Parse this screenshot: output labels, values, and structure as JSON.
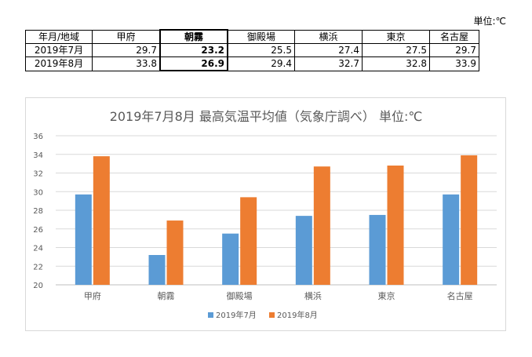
{
  "unit_label": "単位:℃",
  "table": {
    "header": [
      "年月/地域",
      "甲府",
      "朝霧",
      "御殿場",
      "横浜",
      "東京",
      "名古屋"
    ],
    "rows": [
      [
        "2019年7月",
        "29.7",
        "23.2",
        "25.5",
        "27.4",
        "27.5",
        "29.7"
      ],
      [
        "2019年8月",
        "33.8",
        "26.9",
        "29.4",
        "32.7",
        "32.8",
        "33.9"
      ]
    ],
    "highlight_column": "朝霧"
  },
  "chart_data": {
    "type": "bar",
    "title": "2019年7月8月  最高気温平均値（気象庁調べ）  単位:℃",
    "categories": [
      "甲府",
      "朝霧",
      "御殿場",
      "横浜",
      "東京",
      "名古屋"
    ],
    "series": [
      {
        "name": "2019年7月",
        "color": "#5b9bd5",
        "values": [
          29.7,
          23.2,
          25.5,
          27.4,
          27.5,
          29.7
        ]
      },
      {
        "name": "2019年8月",
        "color": "#ed7d31",
        "values": [
          33.8,
          26.9,
          29.4,
          32.7,
          32.8,
          33.9
        ]
      }
    ],
    "ylim": [
      20,
      36
    ],
    "yticks": [
      20,
      22,
      24,
      26,
      28,
      30,
      32,
      34,
      36
    ],
    "grid": true,
    "legend": "bottom-center",
    "xlabel": "",
    "ylabel": ""
  }
}
